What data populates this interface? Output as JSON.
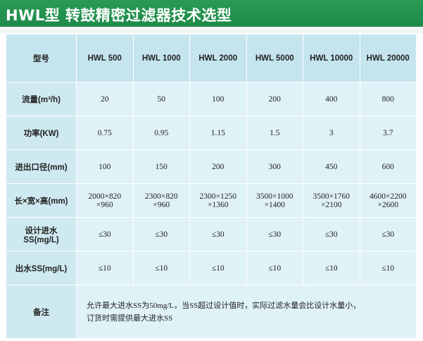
{
  "title": "HWL型 转鼓精密过滤器技术选型",
  "colors": {
    "banner": "#1f8a4a",
    "table_bg": "#dff2f7",
    "header_bg": "#c5e5ee"
  },
  "table": {
    "header_label": "型号",
    "models": [
      "HWL 500",
      "HWL 1000",
      "HWL 2000",
      "HWL 5000",
      "HWL 10000",
      "HWL 20000"
    ],
    "rows": [
      {
        "label": "流量(m³/h)",
        "values": [
          "20",
          "50",
          "100",
          "200",
          "400",
          "800"
        ]
      },
      {
        "label": "功率(KW)",
        "values": [
          "0.75",
          "0.95",
          "1.15",
          "1.5",
          "3",
          "3.7"
        ]
      },
      {
        "label": "进出口径(mm)",
        "values": [
          "100",
          "150",
          "200",
          "300",
          "450",
          "600"
        ]
      },
      {
        "label": "长×宽×高(mm)",
        "values": [
          [
            "2000×820",
            "×960"
          ],
          [
            "2300×820",
            "×960"
          ],
          [
            "2300×1250",
            "×1360"
          ],
          [
            "3500×1000",
            "×1400"
          ],
          [
            "3500×1760",
            "×2100"
          ],
          [
            "4600×2200",
            "×2600"
          ]
        ]
      },
      {
        "label": "设计进水SS(mg/L)",
        "values": [
          "≤30",
          "≤30",
          "≤30",
          "≤30",
          "≤30",
          "≤30"
        ]
      },
      {
        "label": "出水SS(mg/L)",
        "values": [
          "≤10",
          "≤10",
          "≤10",
          "≤10",
          "≤10",
          "≤10"
        ]
      }
    ],
    "note_label": "备注",
    "note_lines": [
      "允许最大进水SS为50mg/L，当SS超过设计值时，实际过滤水量会比设计水量小，",
      "订货时需提供最大进水SS"
    ]
  }
}
